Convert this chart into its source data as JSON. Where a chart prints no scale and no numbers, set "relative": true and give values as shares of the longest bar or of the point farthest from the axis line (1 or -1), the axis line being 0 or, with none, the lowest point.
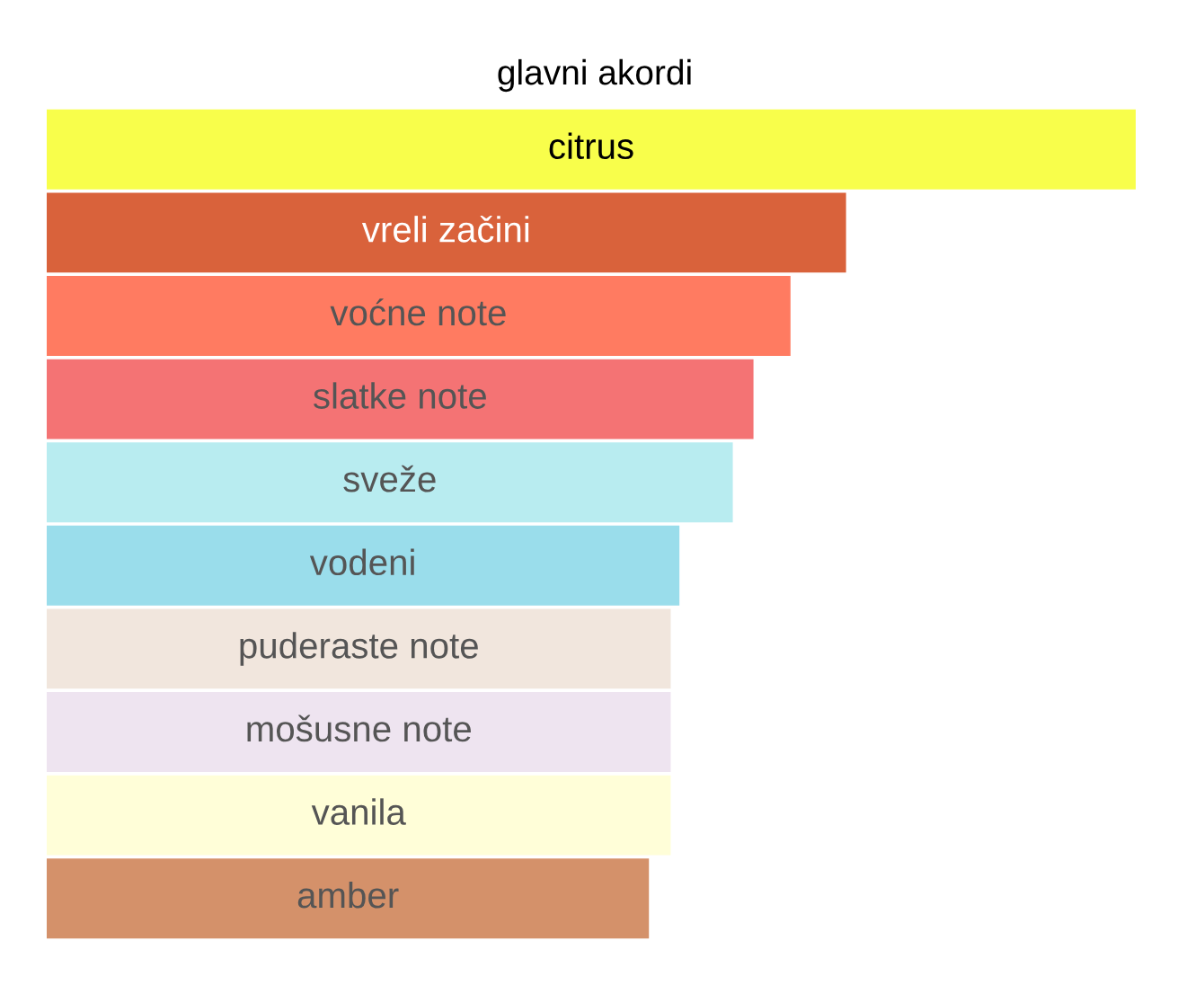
{
  "chart_data": {
    "type": "bar",
    "orientation": "horizontal",
    "relative": true,
    "title": "glavni akordi",
    "categories": [
      "citrus",
      "vreli začini",
      "voćne note",
      "slatke note",
      "sveže",
      "vodeni",
      "puderaste note",
      "mošusne note",
      "vanila",
      "amber"
    ],
    "values": [
      1,
      0.734,
      0.683,
      0.649,
      0.63,
      0.581,
      0.573,
      0.573,
      0.573,
      0.553
    ],
    "colors": [
      "#f8fe4b",
      "#d9623b",
      "#ff7b61",
      "#f47374",
      "#b8ecf0",
      "#9addeb",
      "#f1e6dd",
      "#eee4f0",
      "#fffed8",
      "#d4916a"
    ]
  }
}
